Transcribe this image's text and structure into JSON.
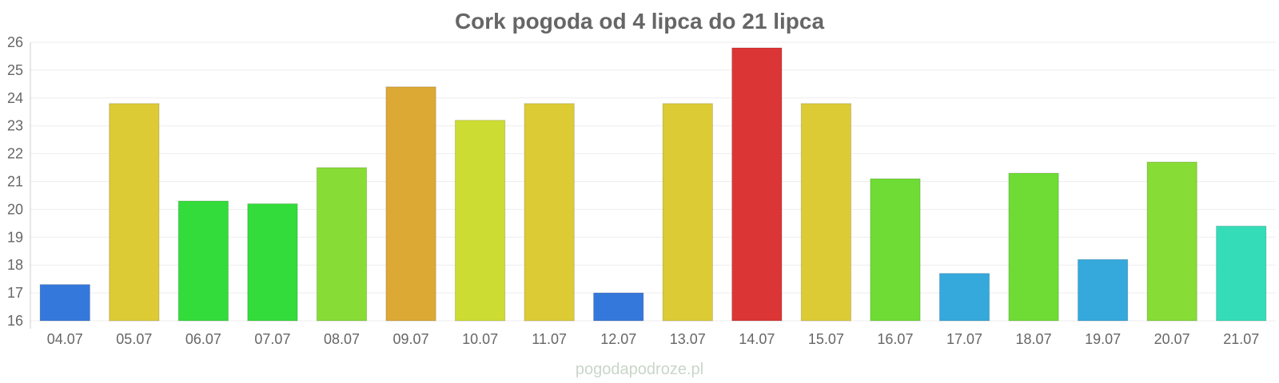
{
  "watermark": "pogodapodroze.pl",
  "chart_data": {
    "type": "bar",
    "title": "Cork pogoda od 4 lipca do 21 lipca",
    "xlabel": "",
    "ylabel": "",
    "ylim": [
      16,
      26
    ],
    "yticks": [
      16,
      17,
      18,
      19,
      20,
      21,
      22,
      23,
      24,
      25,
      26
    ],
    "grid": true,
    "legend": "none",
    "categories": [
      "04.07",
      "05.07",
      "06.07",
      "07.07",
      "08.07",
      "09.07",
      "10.07",
      "11.07",
      "12.07",
      "13.07",
      "14.07",
      "15.07",
      "16.07",
      "17.07",
      "18.07",
      "19.07",
      "20.07",
      "21.07"
    ],
    "values": [
      17.3,
      23.8,
      20.3,
      20.2,
      21.5,
      24.4,
      23.2,
      23.8,
      17.0,
      23.8,
      25.8,
      23.8,
      21.1,
      17.7,
      21.3,
      18.2,
      21.7,
      19.4
    ],
    "colors": [
      "#3578dc",
      "#dccb35",
      "#33dc3a",
      "#33dc3a",
      "#87dc35",
      "#dca935",
      "#cddc33",
      "#dccb35",
      "#3578dc",
      "#dccb35",
      "#dc3535",
      "#dccb35",
      "#6edc35",
      "#35a8dc",
      "#6edc35",
      "#35a8dc",
      "#87dc35",
      "#35dcb8"
    ]
  }
}
